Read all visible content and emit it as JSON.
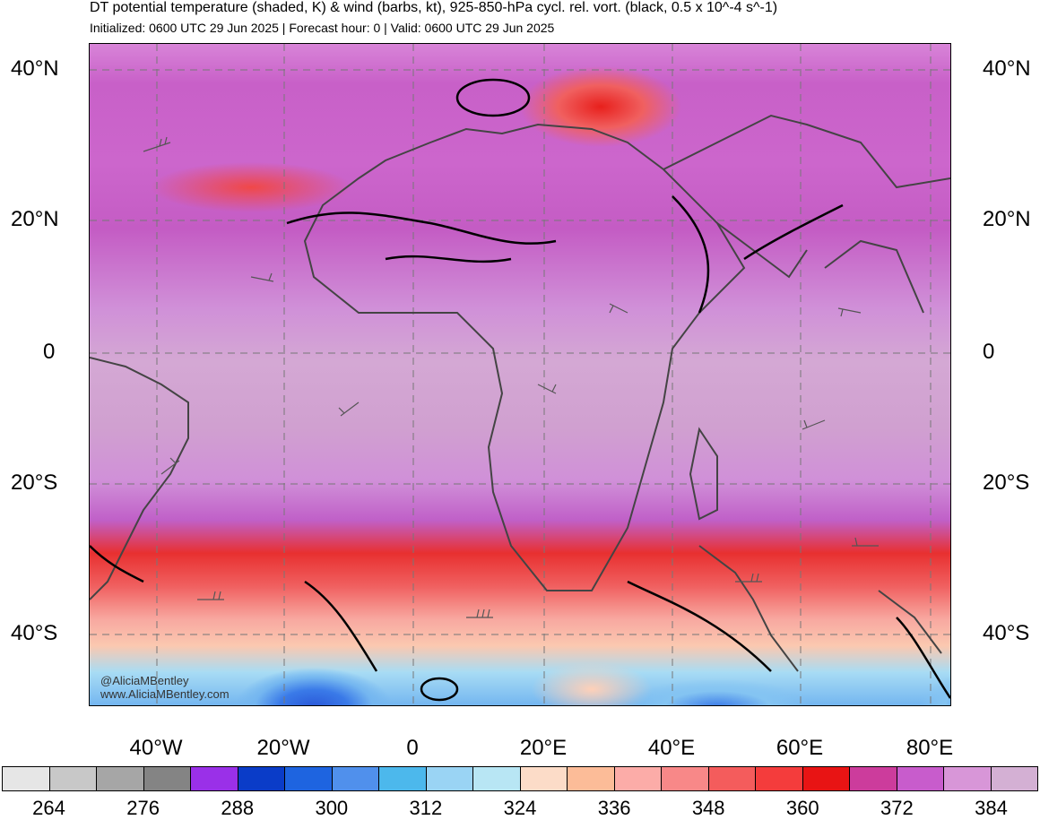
{
  "title": "DT potential temperature (shaded, K) & wind (barbs, kt), 925-850-hPa cycl. rel. vort. (black, 0.5 x 10^-4 s^-1)",
  "subtitle": "Initialized: 0600 UTC 29 Jun 2025 | Forecast hour: 0 | Valid: 0600 UTC 29 Jun 2025",
  "lat_labels": [
    "40°N",
    "20°N",
    "0",
    "20°S",
    "40°S"
  ],
  "lon_labels": [
    "40°W",
    "20°W",
    "0",
    "20°E",
    "40°E",
    "60°E",
    "80°E"
  ],
  "credit": [
    "@AliciaMBentley",
    "www.AliciaMBentley.com"
  ],
  "colorbar": {
    "colors": [
      "#e6e6e6",
      "#c8c8c8",
      "#a6a6a6",
      "#848484",
      "#9a30e8",
      "#0a3cc8",
      "#1e64e0",
      "#5090ec",
      "#4cb8ec",
      "#9ad4f4",
      "#b8e6f4",
      "#fcdcc8",
      "#fcbc98",
      "#fcaca8",
      "#f88888",
      "#f45c5c",
      "#f43c3c",
      "#e81414",
      "#cc3c9c",
      "#c85ccc",
      "#d896d8",
      "#d4b0d4"
    ],
    "labels": [
      "264",
      "276",
      "288",
      "300",
      "312",
      "324",
      "336",
      "348",
      "360",
      "372",
      "384"
    ]
  }
}
